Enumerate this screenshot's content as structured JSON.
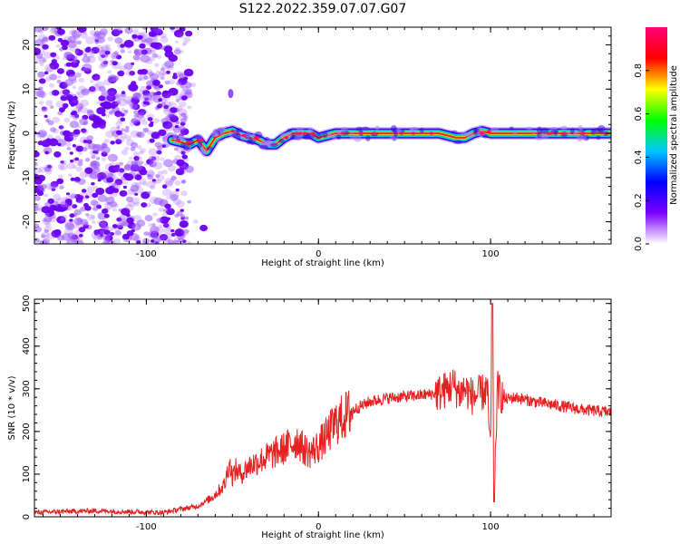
{
  "title": "S122.2022.359.07.07.G07",
  "chart_data": [
    {
      "type": "heatmap",
      "xlabel": "Height of straight line (km)",
      "ylabel": "Frequency (Hz)",
      "xlim": [
        -165,
        170
      ],
      "ylim": [
        -25,
        24
      ],
      "x_ticks": [
        -100,
        0,
        100
      ],
      "y_ticks": [
        -20,
        -10,
        0,
        10,
        20
      ],
      "colorbar": {
        "label": "Normalized spectral amplitude",
        "range": [
          0,
          1
        ],
        "ticks": [
          "0.0",
          "0.2",
          "0.4",
          "0.6",
          "0.8"
        ],
        "colormap": [
          "#ffffff",
          "#7a00ff",
          "#0000ff",
          "#00c8ff",
          "#00ff00",
          "#ffff00",
          "#ff0000",
          "#ff0078"
        ]
      },
      "ridge": {
        "x": [
          -85,
          -80,
          -75,
          -70,
          -65,
          -60,
          -55,
          -50,
          -45,
          -40,
          -35,
          -30,
          -25,
          -20,
          -15,
          -10,
          -5,
          0,
          10,
          20,
          30,
          40,
          50,
          60,
          70,
          80,
          85,
          90,
          95,
          100,
          110,
          120,
          130,
          140,
          150,
          160,
          170
        ],
        "y": [
          -1.5,
          -2,
          -2.5,
          -1.5,
          -4,
          -1,
          0,
          0.5,
          -0.5,
          -1,
          -1.5,
          -2.5,
          -2.5,
          -1,
          0,
          0,
          0,
          -1,
          0,
          0,
          0,
          0,
          0,
          0,
          0,
          -1,
          -1,
          0,
          0.5,
          0,
          0,
          0,
          0,
          0,
          0,
          0,
          0
        ]
      },
      "noise_region_x": [
        -165,
        -75
      ]
    },
    {
      "type": "line",
      "xlabel": "Height of straight line (km)",
      "ylabel": "SNR (10 * v/v)",
      "xlim": [
        -165,
        170
      ],
      "ylim": [
        0,
        510
      ],
      "x_ticks": [
        -100,
        0,
        100
      ],
      "y_ticks": [
        0,
        100,
        200,
        300,
        400,
        500
      ],
      "line_color": "#e62020",
      "series": [
        {
          "x": [
            -165,
            -150,
            -130,
            -110,
            -90,
            -80,
            -70,
            -62,
            -58,
            -54,
            -52,
            -50,
            -48,
            -45,
            -40,
            -35,
            -30,
            -25,
            -20,
            -16,
            -12,
            -9,
            -5,
            0,
            5,
            10,
            20,
            30,
            40,
            50,
            60,
            70,
            75,
            78,
            82,
            85,
            90,
            95,
            98,
            100,
            101,
            102,
            104,
            108,
            115,
            125,
            140,
            155,
            170
          ],
          "y": [
            10,
            12,
            14,
            12,
            10,
            18,
            25,
            45,
            60,
            80,
            130,
            95,
            110,
            100,
            120,
            130,
            140,
            150,
            160,
            170,
            180,
            160,
            150,
            165,
            190,
            220,
            250,
            270,
            278,
            282,
            285,
            290,
            300,
            310,
            290,
            300,
            280,
            290,
            300,
            150,
            500,
            60,
            300,
            275,
            280,
            270,
            260,
            250,
            245
          ]
        }
      ]
    }
  ]
}
